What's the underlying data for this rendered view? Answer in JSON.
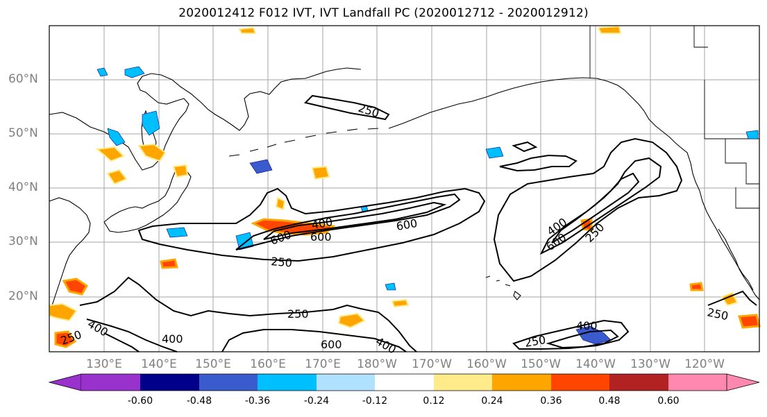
{
  "title": "2020012412 F012 IVT, IVT Landfall PC (2020012712 - 2020012912)",
  "latitude_labels": [
    "60°N",
    "50°N",
    "40°N",
    "30°N",
    "20°N"
  ],
  "longitude_labels": [
    "130°E",
    "140°E",
    "150°E",
    "160°E",
    "170°E",
    "180°W",
    "170°W",
    "160°W",
    "150°W",
    "140°W",
    "130°W",
    "120°W"
  ],
  "contour_labels": [
    "250",
    "250",
    "400",
    "600",
    "600",
    "600",
    "400",
    "600",
    "250",
    "250",
    "400",
    "250",
    "400",
    "400",
    "600",
    "250",
    "400",
    "250"
  ],
  "colorbar": {
    "tick_labels": [
      "-0.60",
      "-0.48",
      "-0.36",
      "-0.24",
      "-0.12",
      "0.12",
      "0.24",
      "0.36",
      "0.48",
      "0.60"
    ],
    "colors": [
      "#9932cc",
      "#00008b",
      "#3a5bcd",
      "#00bfff",
      "#b0e2ff",
      "#ffffff",
      "#ffeb8a",
      "#ffa500",
      "#ff4500",
      "#b22222",
      "#ff88b0"
    ]
  },
  "colors": {
    "contour": "#000000",
    "coast": "#000000",
    "grid": "#a6a6a6",
    "label_gray": "#808080"
  }
}
